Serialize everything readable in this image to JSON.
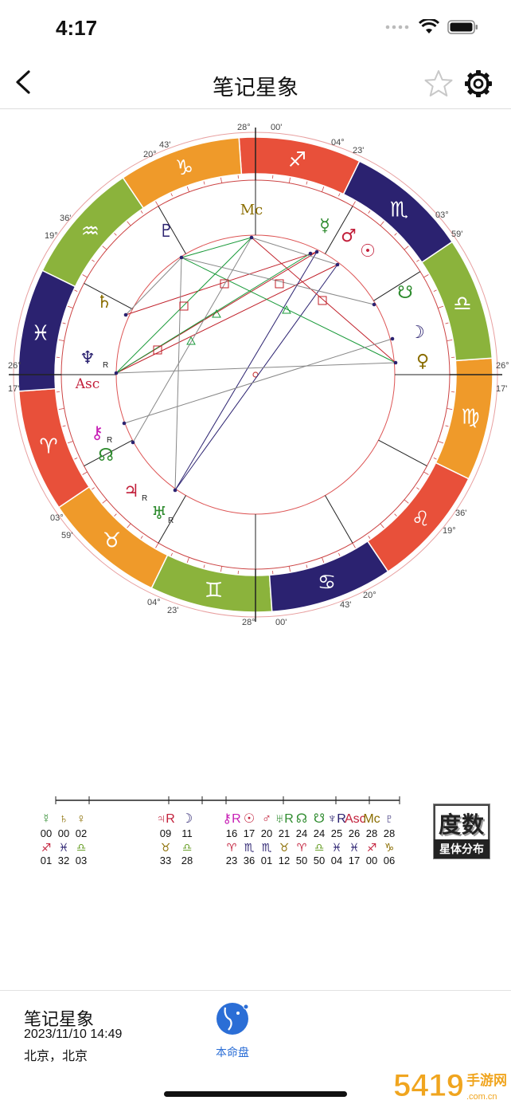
{
  "status_bar": {
    "time": "4:17"
  },
  "nav": {
    "title": "笔记星象"
  },
  "chart": {
    "degree_labels": [
      "28°",
      "00'",
      "04°",
      "23'",
      "03°",
      "59'",
      "26°",
      "17'",
      "36'",
      "19°",
      "43'",
      "20°"
    ],
    "sign_colors": {
      "fire": "#e8503a",
      "earth": "#ef9a2a",
      "air": "#8bb33c",
      "water": "#2b2270"
    },
    "zodiac_glyphs": [
      "♐",
      "♏",
      "♎",
      "♍",
      "♌",
      "♋",
      "♊",
      "♉",
      "♈",
      "♓",
      "♒",
      "♑"
    ],
    "angle_labels": {
      "mc": "Mc",
      "asc": "Asc"
    },
    "planet_glyphs": [
      "♀",
      "☽",
      "☊",
      "☉",
      "♂",
      "☿",
      "♇",
      "♄",
      "♆",
      "⚷",
      "☋",
      "♃",
      "♅"
    ],
    "retro_mark": "R"
  },
  "degree_strip": [
    {
      "g": "☿",
      "d1": "00",
      "s": "♐",
      "d2": "01",
      "c": "#2e8b2e",
      "sc": "#c21f3a"
    },
    {
      "g": "♄",
      "d1": "00",
      "s": "♓",
      "d2": "32",
      "c": "#8a6d00",
      "sc": "#2b2270"
    },
    {
      "g": "♀",
      "d1": "02",
      "s": "♎",
      "d2": "03",
      "c": "#8a6d00",
      "sc": "#6aa02a"
    },
    {
      "g": "♃R",
      "d1": "09",
      "s": "♉",
      "d2": "33",
      "c": "#c21f3a",
      "sc": "#8a6d00"
    },
    {
      "g": "☽",
      "d1": "11",
      "s": "♎",
      "d2": "28",
      "c": "#2b2270",
      "sc": "#6aa02a"
    },
    {
      "g": "⚷R",
      "d1": "16",
      "s": "♈",
      "d2": "23",
      "c": "#c71fb5",
      "sc": "#c21f3a"
    },
    {
      "g": "☉",
      "d1": "17",
      "s": "♏",
      "d2": "36",
      "c": "#c21f3a",
      "sc": "#2b2270"
    },
    {
      "g": "♂",
      "d1": "20",
      "s": "♏",
      "d2": "01",
      "c": "#c21f3a",
      "sc": "#2b2270"
    },
    {
      "g": "♅R",
      "d1": "21",
      "s": "♉",
      "d2": "12",
      "c": "#2e8b2e",
      "sc": "#8a6d00"
    },
    {
      "g": "☊",
      "d1": "24",
      "s": "♈",
      "d2": "50",
      "c": "#2e8b2e",
      "sc": "#c21f3a"
    },
    {
      "g": "☋",
      "d1": "24",
      "s": "♎",
      "d2": "50",
      "c": "#2e8b2e",
      "sc": "#6aa02a"
    },
    {
      "g": "♆R",
      "d1": "25",
      "s": "♓",
      "d2": "04",
      "c": "#2b2270",
      "sc": "#2b2270"
    },
    {
      "g": "Asc",
      "d1": "26",
      "s": "♓",
      "d2": "17",
      "c": "#c21f3a",
      "sc": "#2b2270"
    },
    {
      "g": "Mc",
      "d1": "28",
      "s": "♐",
      "d2": "00",
      "c": "#8a6d00",
      "sc": "#c21f3a"
    },
    {
      "g": "♇",
      "d1": "28",
      "s": "♑",
      "d2": "06",
      "c": "#2b2270",
      "sc": "#8a6d00"
    }
  ],
  "degree_button": {
    "big": "度数",
    "small": "星体分布"
  },
  "profile": {
    "name": "笔记星象",
    "datetime": "2023/11/10 14:49",
    "place": "北京，北京"
  },
  "tab": {
    "label": "本命盘"
  },
  "watermark": {
    "brand": "5419手游网",
    "url": "www.5419.com.cn"
  }
}
